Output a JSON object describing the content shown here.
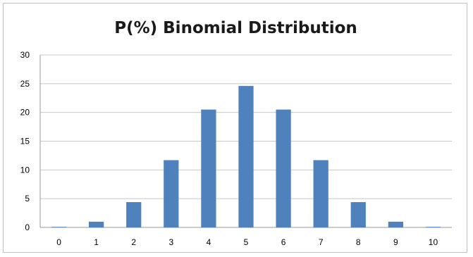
{
  "chart_data": {
    "type": "bar",
    "title": "P(%) Binomial Distribution",
    "xlabel": "",
    "ylabel": "",
    "categories": [
      "0",
      "1",
      "2",
      "3",
      "4",
      "5",
      "6",
      "7",
      "8",
      "9",
      "10"
    ],
    "values": [
      0.1,
      1.0,
      4.4,
      11.7,
      20.5,
      24.6,
      20.5,
      11.7,
      4.4,
      1.0,
      0.1
    ],
    "ylim": [
      0,
      30
    ],
    "yticks": [
      "0",
      "5",
      "10",
      "15",
      "20",
      "25",
      "30"
    ],
    "grid": true,
    "legend": "none",
    "bar_color": "#4f81bd"
  }
}
